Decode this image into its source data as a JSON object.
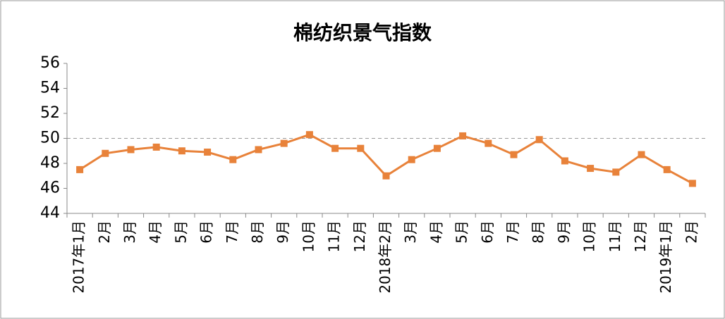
{
  "chart_data": {
    "type": "line",
    "title": "棉纺织景气指数",
    "categories": [
      "2017年1月",
      "2月",
      "3月",
      "4月",
      "5月",
      "6月",
      "7月",
      "8月",
      "9月",
      "10月",
      "11月",
      "12月",
      "2018年2月",
      "3月",
      "4月",
      "5月",
      "6月",
      "7月",
      "8月",
      "9月",
      "10月",
      "11月",
      "12月",
      "2019年1月",
      "2月"
    ],
    "series": [
      {
        "color": "#e8823a",
        "values": [
          47.5,
          48.8,
          49.1,
          49.3,
          49.0,
          48.9,
          48.3,
          49.1,
          49.6,
          50.3,
          49.2,
          49.2,
          47.0,
          48.3,
          49.2,
          50.2,
          49.6,
          48.7,
          49.9,
          48.2,
          47.6,
          47.3,
          48.7,
          47.5,
          46.4
        ]
      }
    ],
    "ylim": [
      44,
      56
    ],
    "yticks": [
      44,
      46,
      48,
      50,
      52,
      54,
      56
    ],
    "reference_line": 50,
    "grid": false
  }
}
